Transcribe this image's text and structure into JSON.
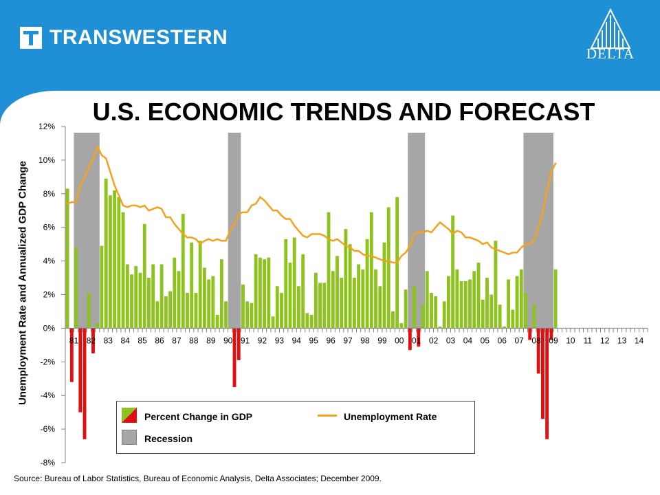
{
  "header": {
    "brand_name": "TRANSWESTERN",
    "partner_name": "DELTA"
  },
  "title": "U.S. ECONOMIC TRENDS AND FORECAST",
  "source": "Source: Bureau  of Labor Statistics, Bureau of Economic Analysis, Delta Associates; December 2009.",
  "colors": {
    "banner": "#1f8fd6",
    "gdp_positive": "#8dc21f",
    "gdp_negative": "#e01010",
    "recession": "#a6a6a6",
    "unemployment": "#f4a11e"
  },
  "chart_data": {
    "type": "bar",
    "title": "U.S. ECONOMIC TRENDS AND FORECAST",
    "ylabel": "Unemployment Rate and Annualized GDP Change",
    "xlabel": "",
    "ylim": [
      -8,
      12
    ],
    "y_ticks": [
      "12%",
      "10%",
      "8%",
      "6%",
      "4%",
      "2%",
      "0%",
      "-2%",
      "-4%",
      "-6%",
      "-8%"
    ],
    "x_ticks": [
      "81",
      "82",
      "83",
      "84",
      "85",
      "86",
      "87",
      "88",
      "89",
      "90",
      "91",
      "92",
      "93",
      "94",
      "95",
      "96",
      "97",
      "98",
      "99",
      "00",
      "01",
      "02",
      "03",
      "04",
      "05",
      "06",
      "07",
      "08",
      "09",
      "10",
      "11",
      "12",
      "13",
      "14"
    ],
    "x_unit": "quarter",
    "x_start": "1981 Q1",
    "legend": {
      "placement": "bottom",
      "items": [
        "Percent Change in GDP",
        "Unemployment Rate",
        "Recession"
      ]
    },
    "recessions": [
      {
        "start": "1981 Q3",
        "end": "1982 Q4"
      },
      {
        "start": "1990 Q3",
        "end": "1991 Q1"
      },
      {
        "start": "2001 Q1",
        "end": "2001 Q4"
      },
      {
        "start": "2007 Q4",
        "end": "2009 Q2"
      }
    ],
    "series": [
      {
        "name": "Percent Change in GDP",
        "type": "bar",
        "values": [
          8.3,
          -3.2,
          4.8,
          -5.0,
          -6.6,
          2.1,
          -1.5,
          0.3,
          4.9,
          8.9,
          7.9,
          8.2,
          7.8,
          6.9,
          3.8,
          3.2,
          3.7,
          3.3,
          6.2,
          3.0,
          3.8,
          1.6,
          3.8,
          1.9,
          2.2,
          4.2,
          3.4,
          6.8,
          2.1,
          5.1,
          2.1,
          5.2,
          3.6,
          2.9,
          3.1,
          0.8,
          4.1,
          1.6,
          0.1,
          -3.5,
          -1.9,
          2.6,
          1.6,
          1.5,
          4.4,
          4.2,
          4.1,
          4.2,
          0.7,
          2.5,
          2.1,
          5.3,
          3.9,
          5.4,
          2.5,
          4.4,
          0.9,
          0.8,
          3.3,
          2.7,
          2.7,
          6.9,
          3.4,
          4.3,
          3.0,
          5.9,
          5.0,
          3.0,
          3.8,
          3.5,
          5.3,
          6.9,
          3.5,
          2.5,
          5.1,
          7.2,
          1.0,
          7.8,
          0.3,
          2.3,
          -1.3,
          2.5,
          -1.1,
          1.4,
          3.4,
          2.1,
          1.9,
          0.1,
          1.6,
          3.1,
          6.7,
          3.5,
          2.8,
          2.8,
          2.9,
          3.4,
          3.9,
          1.7,
          3.0,
          2.0,
          5.2,
          1.4,
          0.1,
          2.9,
          1.1,
          3.1,
          3.5,
          2.1,
          -0.7,
          1.4,
          -2.7,
          -5.4,
          -6.6,
          -0.7,
          3.5
        ]
      },
      {
        "name": "Unemployment Rate",
        "type": "line",
        "values": [
          7.4,
          7.5,
          7.5,
          8.5,
          9.0,
          9.6,
          10.1,
          10.8,
          10.3,
          10.1,
          9.3,
          8.5,
          7.9,
          7.3,
          7.2,
          7.3,
          7.3,
          7.2,
          7.3,
          7.0,
          7.1,
          7.2,
          7.1,
          6.6,
          6.6,
          6.2,
          5.9,
          5.6,
          5.4,
          5.4,
          5.3,
          5.0,
          5.2,
          5.3,
          5.2,
          5.3,
          5.2,
          5.2,
          5.8,
          6.2,
          6.8,
          6.9,
          6.9,
          7.3,
          7.4,
          7.8,
          7.6,
          7.3,
          7.0,
          7.0,
          6.7,
          6.5,
          6.5,
          6.1,
          5.8,
          5.5,
          5.4,
          5.6,
          5.6,
          5.6,
          5.5,
          5.3,
          5.2,
          5.3,
          5.1,
          4.9,
          4.8,
          4.6,
          4.6,
          4.4,
          4.3,
          4.3,
          4.2,
          4.1,
          4.0,
          4.0,
          3.9,
          3.9,
          4.3,
          4.5,
          4.9,
          5.6,
          5.7,
          5.7,
          5.8,
          5.7,
          6.0,
          6.3,
          6.1,
          5.9,
          5.6,
          5.8,
          5.7,
          5.4,
          5.4,
          5.3,
          5.2,
          5.0,
          5.1,
          4.8,
          4.7,
          4.6,
          4.5,
          4.4,
          4.5,
          4.5,
          4.8,
          5.0,
          5.0,
          5.3,
          6.0,
          6.9,
          8.2,
          9.3,
          9.8
        ]
      }
    ]
  }
}
